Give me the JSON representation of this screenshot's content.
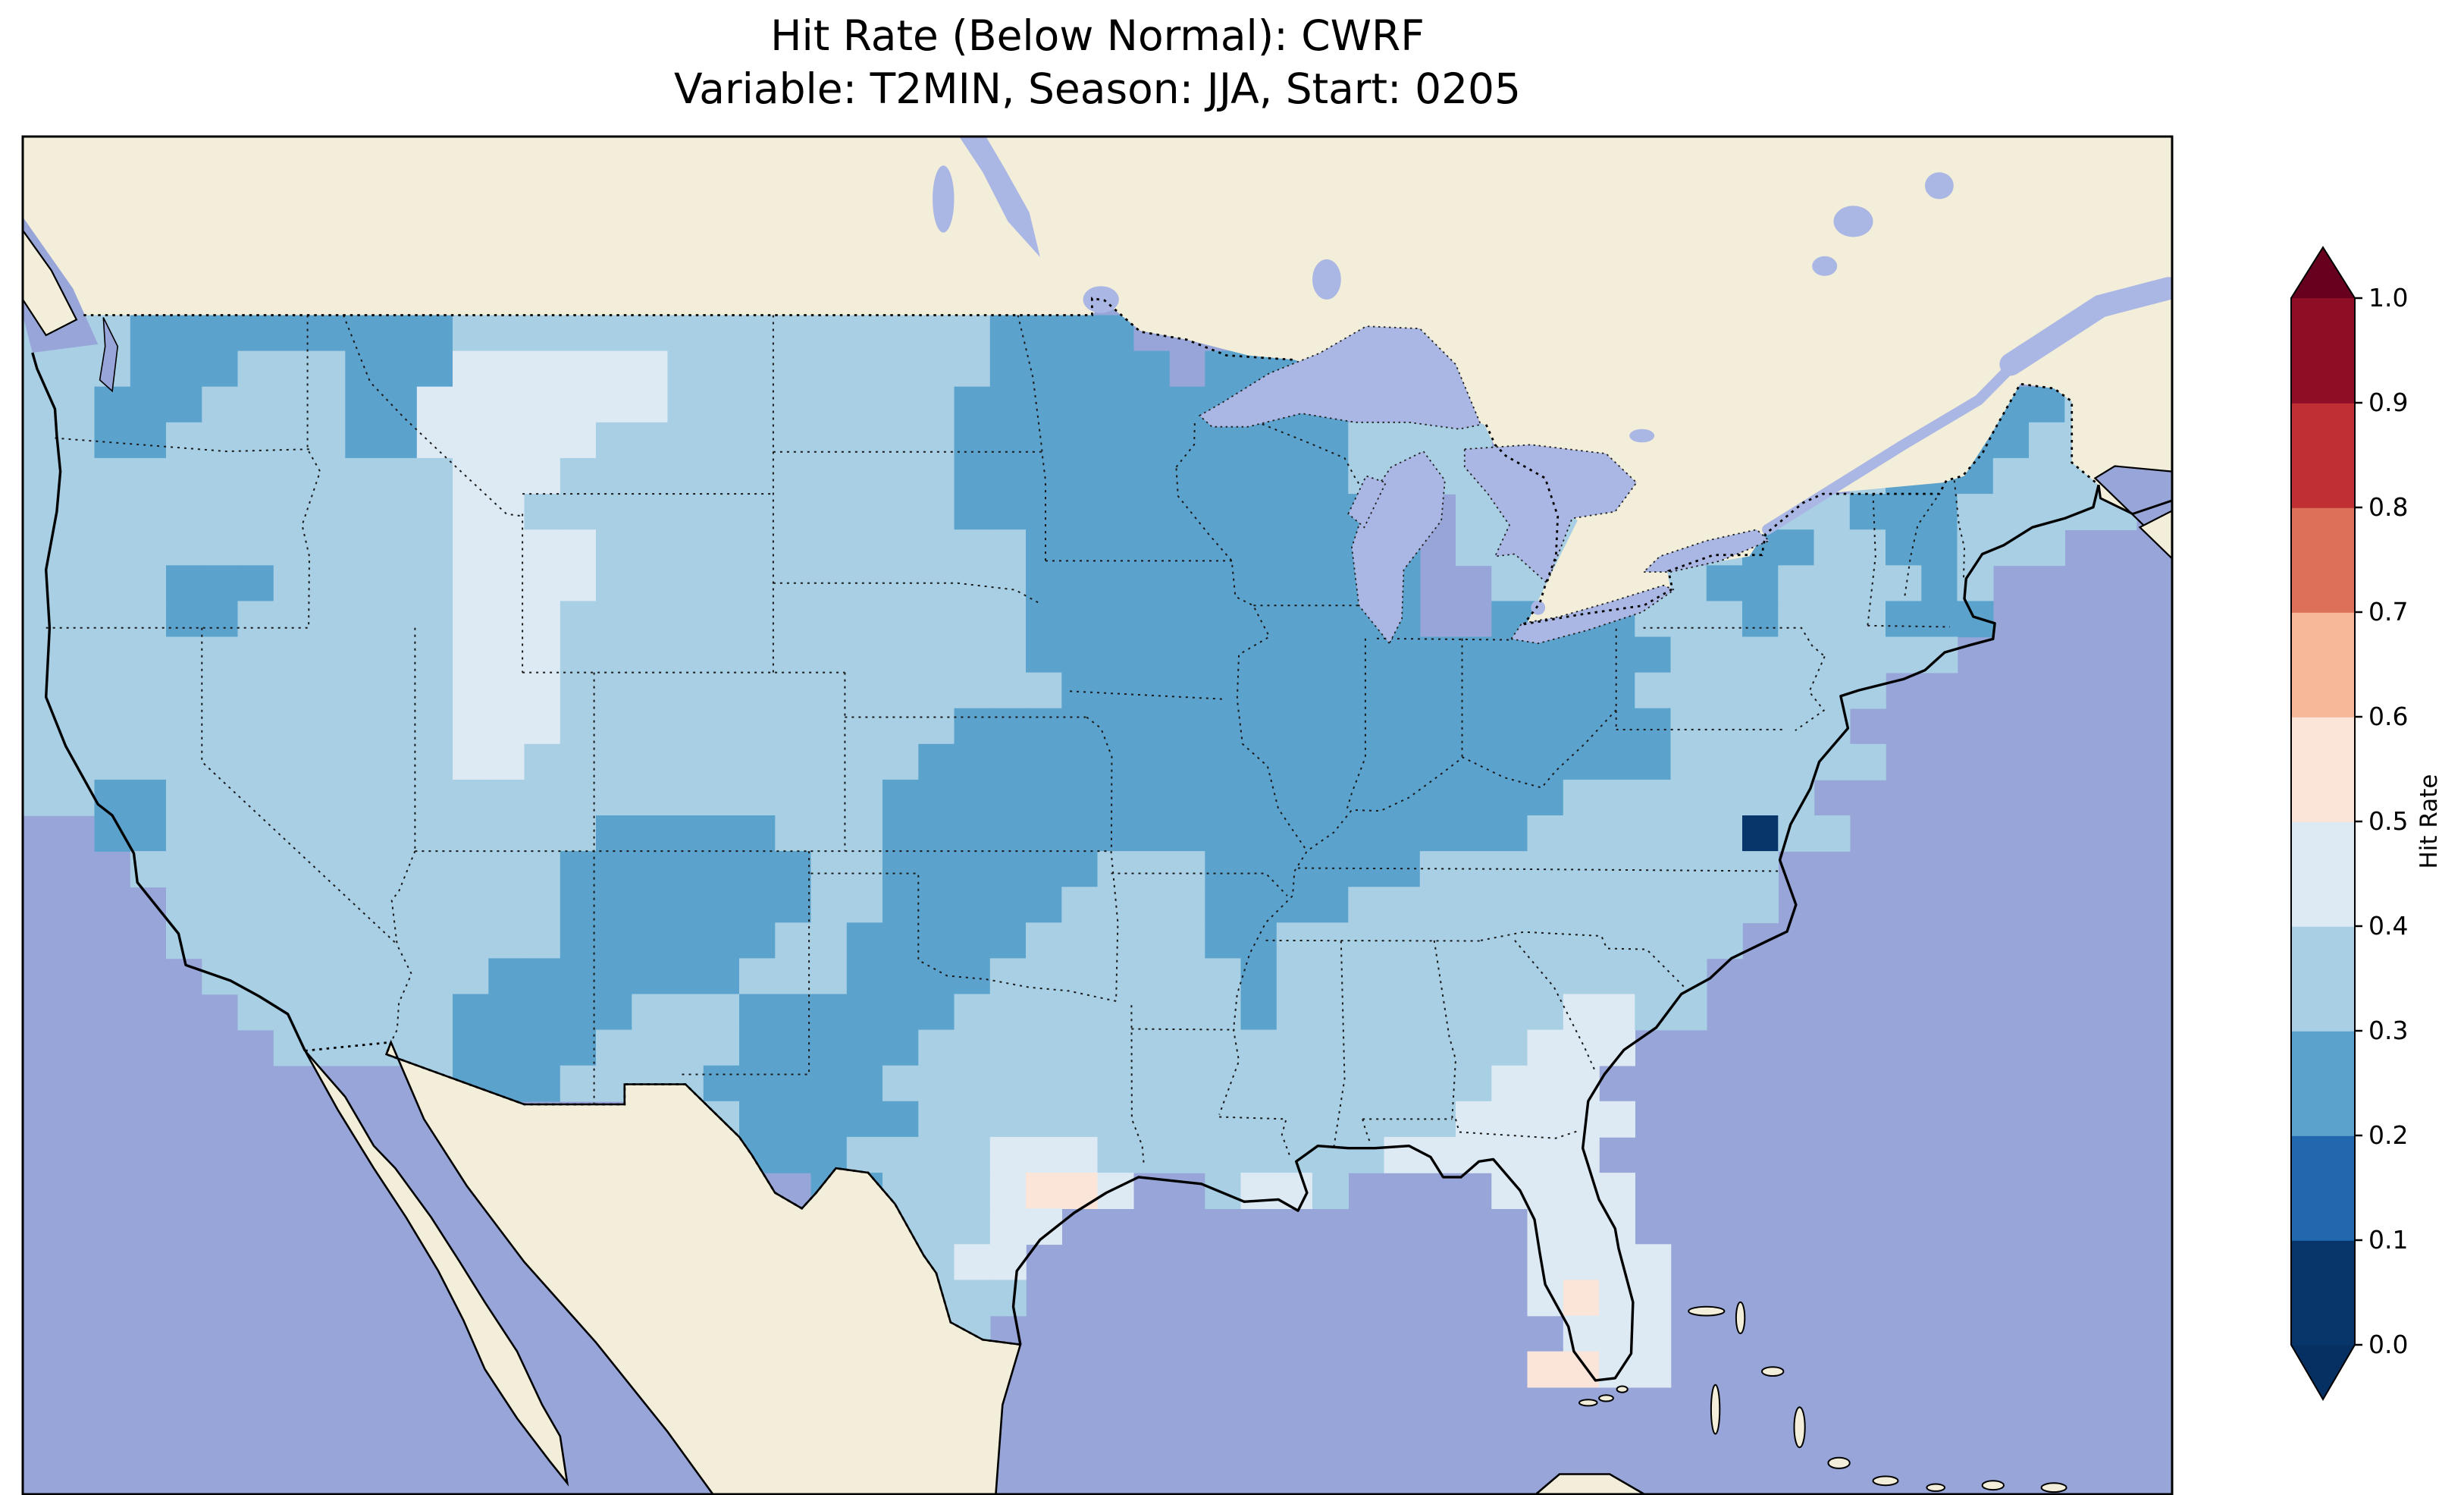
{
  "chart_data": {
    "type": "heatmap",
    "title": "Hit Rate (Below Normal): CWRF",
    "subtitle": "Variable: T2MIN, Season: JJA, Start: 0205",
    "model": "CWRF",
    "variable": "T2MIN",
    "season": "JJA",
    "start": "0205",
    "category": "Below Normal",
    "legend_position": "right",
    "colorbar": {
      "label": "Hit Rate",
      "orientation": "vertical",
      "extend": "both",
      "tick_labels": [
        "0.0",
        "0.1",
        "0.2",
        "0.3",
        "0.4",
        "0.5",
        "0.6",
        "0.7",
        "0.8",
        "0.9",
        "1.0"
      ],
      "bin_edges": [
        0.0,
        0.1,
        0.2,
        0.3,
        0.4,
        0.5,
        0.6,
        0.7,
        0.8,
        0.9,
        1.0
      ],
      "bin_colors": [
        "#08366b",
        "#2268ae",
        "#5ba3cd",
        "#a8cfe4",
        "#ddeaf3",
        "#fbe5d8",
        "#f7b799",
        "#dd7059",
        "#bf2f33",
        "#8f0d25"
      ],
      "under_color": "#053061",
      "over_color": "#67001f"
    },
    "grid": {
      "lon_min": -125,
      "lon_max": -65,
      "lat_max": 53.0,
      "lat_min": 22.6,
      "cell_lon_deg": 1.0,
      "cell_lat_deg": 0.8,
      "legend": {
        ".": "outside domain",
        "1": "0.1-0.2",
        "2": "0.2-0.3",
        "3": "0.3-0.4",
        "4": "0.4-0.5",
        "5": "0.5-0.6"
      },
      "rows": [
        "............................................................",
        "............................................................",
        "............................................................",
        "............................................................",
        "............................................................",
        "3332222222223333333333333332222.............................",
        "33322233322244444433333333322222.2222.......................",
        "3322233332244444443333333322222222222.................3223..",
        "33223333322444443333333333222222222223333............32233..",
        "33333333333344433333333333222222222223333..........32223333.",
        "333333333333443333333333332222222222222.3333.....3322233333.",
        "333333333333444433333333333322222222222.33333..3223322333...",
        "333322233333444433333333333322222222222..33333322333323.....",
        "333322333333444333333333333322222222222..22223332333222.....",
        "333333333333444333333333333322222222222222222233333333......",
        "3333333333334443333333333333322222222222222223333333........",
        "333333333333444333333333332222222222222222222233333.........",
        "3333333333334433333333333222222222222222222222333333.........",
        "33223333333333333333333322222222222222222223333333..........",
        "..2233333333333322222333222222222222222222333333 33..........",
        "...3333333333332222222332222223332222223333333333...........",
        "....333333333332222222332222233332222333333333333...........",
        "....33333333333222222332222233333223333333333333............",
        ".....333333332222222333222233333332333333333333.............",
        "......33333322222333222222333333332333333334433.............",
        ".......33333222233332222233333333333333333444...............",
        "...........322233332222233333333333333333444................",
        ".................3332222233333333333333344444................",
        "....................222333344433333333444444................",
        "......................223334554..3443....4444...............",
        ".......................333344.............444...............",
        "........................3344..............4444..............",
        ".........................333..............4544..............",
        ".........................33................444..............",
        "..........................................5544..............",
        "............................................................",
        "............................................................",
        "............................................................"
      ]
    }
  },
  "map": {
    "ocean_color": "#98a5d8",
    "land_color": "#f2eeda",
    "lake_color": "#aab6e4",
    "border_color": "#1a1a1a",
    "coast_color": "#000000",
    "frame_color": "#000000",
    "background": "#ffffff"
  }
}
